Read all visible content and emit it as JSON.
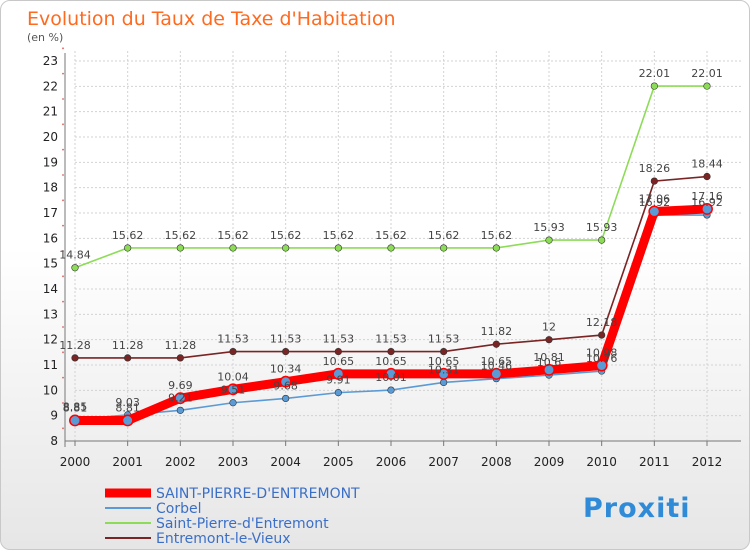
{
  "chart_data": {
    "type": "line",
    "title": "Evolution du Taux de Taxe d'Habitation",
    "subtitle": "(en %)",
    "x": [
      "2000",
      "2001",
      "2002",
      "2003",
      "2004",
      "2005",
      "2006",
      "2007",
      "2008",
      "2009",
      "2010",
      "2011",
      "2012"
    ],
    "ylim": [
      8,
      23
    ],
    "yticks": [
      "8",
      "9",
      "10",
      "11",
      "12",
      "13",
      "14",
      "15",
      "16",
      "17",
      "18",
      "19",
      "20",
      "21",
      "22",
      "23"
    ],
    "series": [
      {
        "name": "Saint-Pierre-d'Entremont",
        "color": "#8ddc57",
        "values": [
          14.84,
          15.62,
          15.62,
          15.62,
          15.62,
          15.62,
          15.62,
          15.62,
          15.62,
          15.93,
          15.93,
          22.01,
          22.01
        ],
        "labels": [
          "14.84",
          "15.62",
          "15.62",
          "15.62",
          "15.62",
          "15.62",
          "15.62",
          "15.62",
          "15.62",
          "15.93",
          "15.93",
          "22.01",
          "22.01"
        ]
      },
      {
        "name": "Entremont-le-Vieux",
        "color": "#7a2424",
        "values": [
          11.28,
          11.28,
          11.28,
          11.53,
          11.53,
          11.53,
          11.53,
          11.53,
          11.82,
          12,
          12.18,
          18.26,
          18.44
        ],
        "labels": [
          "11.28",
          "11.28",
          "11.28",
          "11.53",
          "11.53",
          "11.53",
          "11.53",
          "11.53",
          "11.82",
          "12",
          "12.18",
          "18.26",
          "18.44"
        ]
      },
      {
        "name": "Corbel",
        "color": "#5b9bd5",
        "values": [
          8.85,
          9.03,
          9.21,
          9.51,
          9.68,
          9.91,
          10.01,
          10.31,
          10.46,
          10.6,
          10.76,
          16.92,
          16.92
        ],
        "labels": [
          "8.85",
          "9.03",
          "9.21",
          "9.51",
          "9.68",
          "9.91",
          "10.01",
          "10.31",
          "10.46",
          "10.6",
          "10.76",
          "16.92",
          "16.92"
        ]
      },
      {
        "name": "SAINT-PIERRE-D'ENTREMONT",
        "color": "#ff0000",
        "values": [
          8.81,
          8.81,
          9.69,
          10.04,
          10.34,
          10.65,
          10.65,
          10.65,
          10.65,
          10.81,
          10.98,
          17.06,
          17.16
        ],
        "labels": [
          "8.81",
          "8.81",
          "9.69",
          "10.04",
          "10.34",
          "10.65",
          "10.65",
          "10.65",
          "10.65",
          "10.81",
          "10.98",
          "17.06",
          "17.16"
        ]
      }
    ],
    "legend": [
      {
        "name": "SAINT-PIERRE-D'ENTREMONT",
        "color": "#ff0000",
        "text_color": "#3b6fc7"
      },
      {
        "name": "Corbel",
        "color": "#5b9bd5",
        "text_color": "#3b6fc7"
      },
      {
        "name": "Saint-Pierre-d'Entremont",
        "color": "#8ddc57",
        "text_color": "#3b6fc7"
      },
      {
        "name": "Entremont-le-Vieux",
        "color": "#7a2424",
        "text_color": "#3b6fc7"
      }
    ],
    "brand": "Proxiti"
  }
}
